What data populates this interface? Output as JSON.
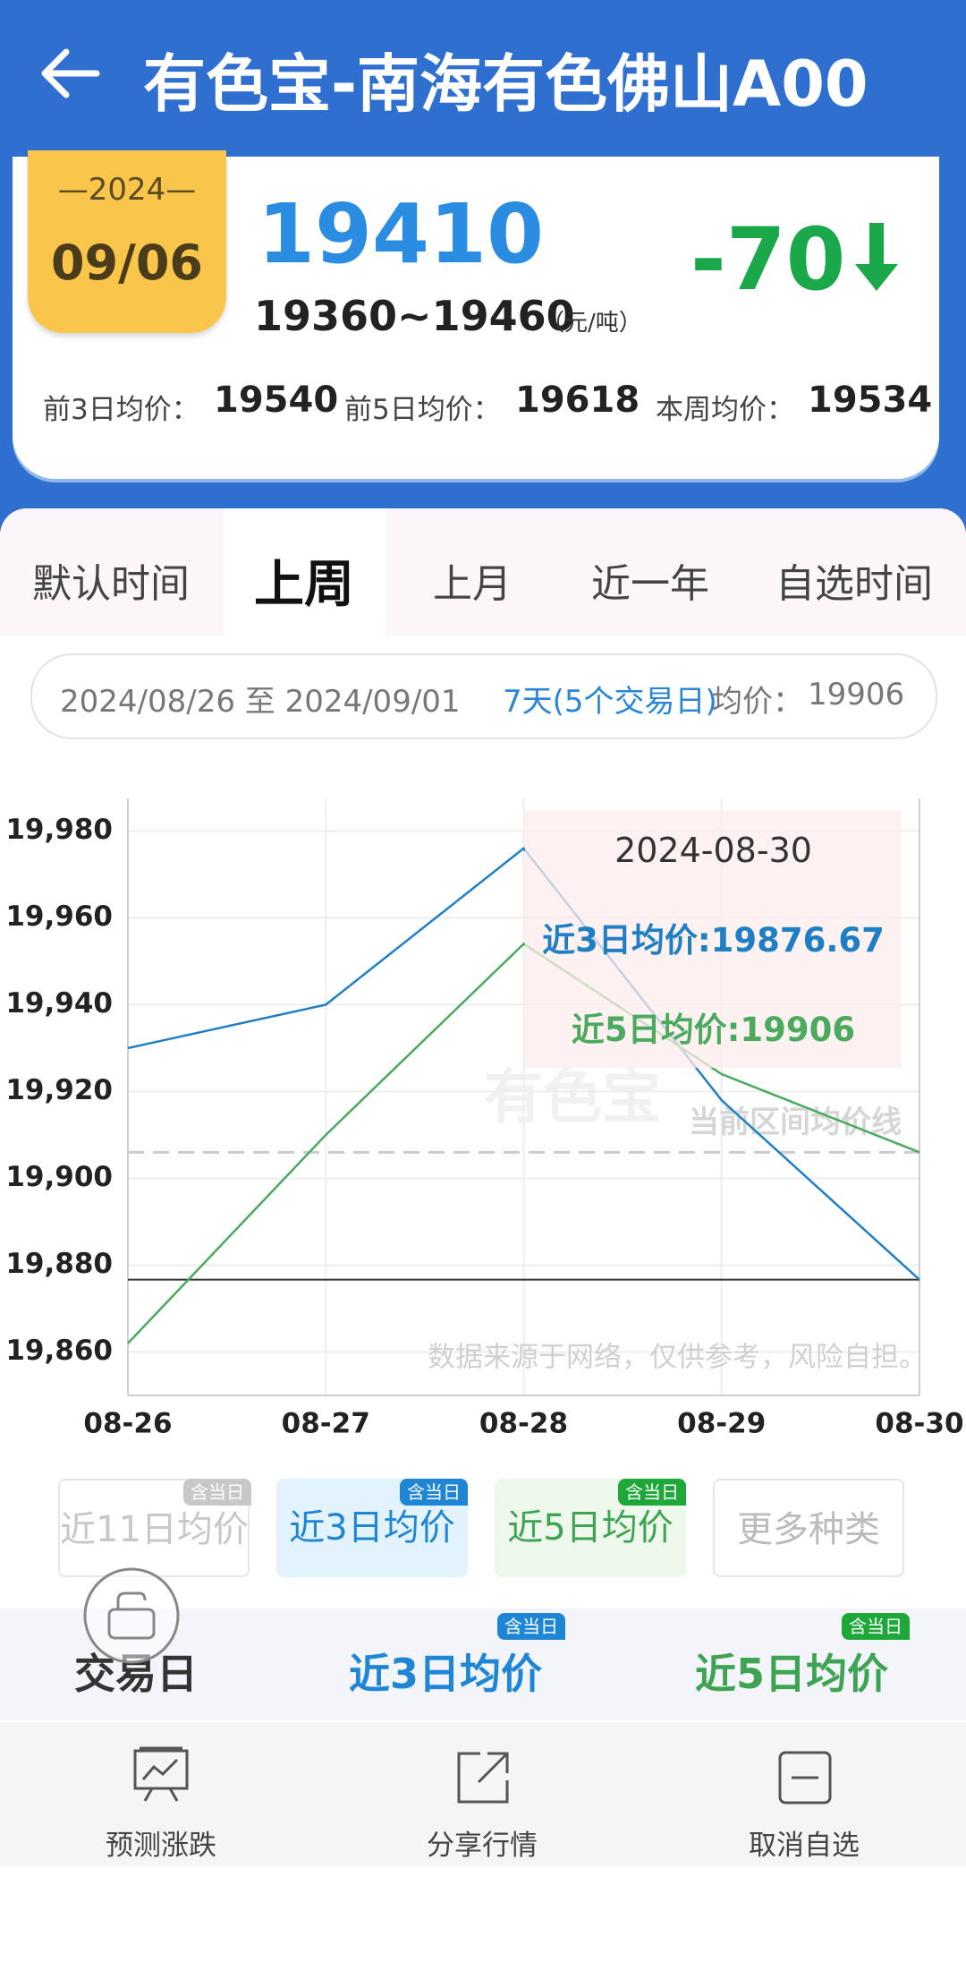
{
  "header": {
    "title": "有色宝-南海有色佛山A00"
  },
  "quote": {
    "year": "—2024—",
    "date": "09/06",
    "price": 19410,
    "range": "19360~19460",
    "unit": "（元/吨）",
    "change": -70,
    "averages": [
      {
        "label": "前3日均价：",
        "value": 19540
      },
      {
        "label": "前5日均价：",
        "value": 19618
      },
      {
        "label": "本周均价：",
        "value": 19534
      }
    ]
  },
  "tabs": {
    "items": [
      "默认时间",
      "上周",
      "上月",
      "近一年",
      "自选时间"
    ],
    "selected": 1
  },
  "range_bar": {
    "period": "2024/08/26 至 2024/09/01",
    "days": "7天(5个交易日)",
    "avg_label": "均价：",
    "avg": 19906
  },
  "chart_data": {
    "type": "line",
    "categories": [
      "08-26",
      "08-27",
      "08-28",
      "08-29",
      "08-30"
    ],
    "series": [
      {
        "name": "近3日均价",
        "color": "#1f7fc4",
        "values": [
          19930,
          19940,
          19976,
          19918,
          19876.67
        ]
      },
      {
        "name": "近5日均价",
        "color": "#4aaa5e",
        "values": [
          19862,
          19910,
          19954,
          19924,
          19906
        ]
      }
    ],
    "ylim": [
      19850,
      19987.5
    ],
    "yticks": [
      {
        "value": 19860,
        "label": "19,860"
      },
      {
        "value": 19880,
        "label": "19,880"
      },
      {
        "value": 19900,
        "label": "19,900"
      },
      {
        "value": 19920,
        "label": "19,920"
      },
      {
        "value": 19940,
        "label": "19,940"
      },
      {
        "value": 19960,
        "label": "19,960"
      },
      {
        "value": 19980,
        "label": "19,980"
      }
    ],
    "grid": true,
    "reference_lines": [
      {
        "value": 19906,
        "color": "#cccccc",
        "dashed": true,
        "label": "当前区间均价线"
      },
      {
        "value": 19876.67,
        "color": "#333333",
        "dashed": false
      }
    ],
    "tooltip": {
      "title": "2024-08-30",
      "lines": [
        "近3日均价:19876.67",
        "近5日均价:19906"
      ]
    },
    "watermark": "有色宝",
    "note": "数据来源于网络，仅供参考，风险自担。"
  },
  "legend_buttons": [
    {
      "label": "近11日均价",
      "badge": "含当日"
    },
    {
      "label": "近3日均价",
      "badge": "含当日"
    },
    {
      "label": "近5日均价",
      "badge": "含当日"
    },
    {
      "label": "更多种类"
    }
  ],
  "table_header": [
    {
      "label": "交易日"
    },
    {
      "label": "近3日均价",
      "badge": "含当日"
    },
    {
      "label": "近5日均价",
      "badge": "含当日"
    }
  ],
  "bottom_nav": [
    "预测涨跌",
    "分享行情",
    "取消自选"
  ]
}
